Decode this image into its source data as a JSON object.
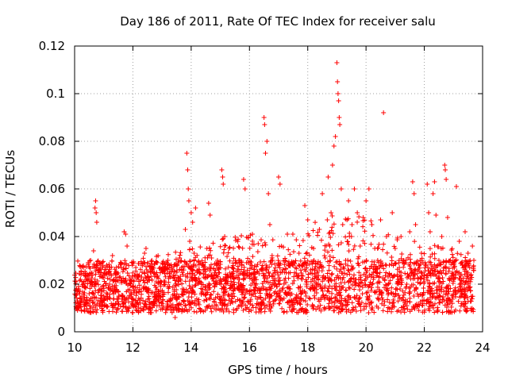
{
  "chart_data": {
    "type": "scatter",
    "title": "Day 186 of 2011, Rate Of TEC Index for receiver salu",
    "xlabel": "GPS time / hours",
    "ylabel": "ROTI / TECUs",
    "xlim": [
      10,
      24
    ],
    "ylim": [
      0,
      0.12
    ],
    "xticks": [
      10,
      12,
      14,
      16,
      18,
      20,
      22,
      24
    ],
    "yticks": [
      0,
      0.02,
      0.04,
      0.06,
      0.08,
      0.1,
      0.12
    ],
    "xtick_labels": [
      "10",
      "12",
      "14",
      "16",
      "18",
      "20",
      "22",
      "24"
    ],
    "ytick_labels": [
      "0",
      "0.02",
      "0.04",
      "0.06",
      "0.08",
      "0.1",
      "0.12"
    ],
    "grid": true,
    "marker": "+",
    "marker_color": "#ff0000",
    "series": [
      {
        "name": "ROTI",
        "points": [
          [
            10.05,
            0.021
          ],
          [
            10.1,
            0.009
          ],
          [
            10.15,
            0.017
          ],
          [
            10.2,
            0.022
          ],
          [
            10.25,
            0.013
          ],
          [
            10.3,
            0.027
          ],
          [
            10.35,
            0.019
          ],
          [
            10.4,
            0.012
          ],
          [
            10.45,
            0.024
          ],
          [
            10.5,
            0.016
          ],
          [
            10.55,
            0.03
          ],
          [
            10.6,
            0.021
          ],
          [
            10.65,
            0.034
          ],
          [
            10.7,
            0.052
          ],
          [
            10.72,
            0.055
          ],
          [
            10.74,
            0.05
          ],
          [
            10.76,
            0.046
          ],
          [
            10.8,
            0.026
          ],
          [
            10.9,
            0.018
          ],
          [
            10.95,
            0.023
          ],
          [
            11.0,
            0.015
          ],
          [
            11.1,
            0.028
          ],
          [
            11.2,
            0.02
          ],
          [
            11.3,
            0.032
          ],
          [
            11.4,
            0.024
          ],
          [
            11.5,
            0.017
          ],
          [
            11.6,
            0.029
          ],
          [
            11.7,
            0.042
          ],
          [
            11.75,
            0.041
          ],
          [
            11.8,
            0.036
          ],
          [
            11.9,
            0.022
          ],
          [
            12.0,
            0.019
          ],
          [
            12.1,
            0.027
          ],
          [
            12.2,
            0.014
          ],
          [
            12.3,
            0.023
          ],
          [
            12.4,
            0.033
          ],
          [
            12.45,
            0.035
          ],
          [
            12.5,
            0.018
          ],
          [
            12.6,
            0.025
          ],
          [
            12.7,
            0.012
          ],
          [
            12.8,
            0.021
          ],
          [
            12.9,
            0.017
          ],
          [
            13.0,
            0.026
          ],
          [
            13.1,
            0.02
          ],
          [
            13.2,
            0.03
          ],
          [
            13.3,
            0.014
          ],
          [
            13.4,
            0.009
          ],
          [
            13.45,
            0.006
          ],
          [
            13.5,
            0.022
          ],
          [
            13.6,
            0.031
          ],
          [
            13.7,
            0.018
          ],
          [
            13.8,
            0.043
          ],
          [
            13.85,
            0.075
          ],
          [
            13.88,
            0.068
          ],
          [
            13.9,
            0.06
          ],
          [
            13.92,
            0.055
          ],
          [
            13.95,
            0.038
          ],
          [
            14.0,
            0.05
          ],
          [
            14.05,
            0.046
          ],
          [
            14.1,
            0.033
          ],
          [
            14.15,
            0.052
          ],
          [
            14.2,
            0.025
          ],
          [
            14.3,
            0.021
          ],
          [
            14.4,
            0.028
          ],
          [
            14.5,
            0.019
          ],
          [
            14.6,
            0.054
          ],
          [
            14.65,
            0.049
          ],
          [
            14.7,
            0.031
          ],
          [
            14.8,
            0.024
          ],
          [
            14.9,
            0.03
          ],
          [
            15.0,
            0.022
          ],
          [
            15.05,
            0.068
          ],
          [
            15.08,
            0.065
          ],
          [
            15.1,
            0.062
          ],
          [
            15.15,
            0.04
          ],
          [
            15.2,
            0.017
          ],
          [
            15.3,
            0.035
          ],
          [
            15.4,
            0.027
          ],
          [
            15.5,
            0.018
          ],
          [
            15.6,
            0.038
          ],
          [
            15.7,
            0.02
          ],
          [
            15.8,
            0.064
          ],
          [
            15.85,
            0.06
          ],
          [
            15.9,
            0.029
          ],
          [
            16.0,
            0.016
          ],
          [
            16.1,
            0.041
          ],
          [
            16.2,
            0.023
          ],
          [
            16.3,
            0.037
          ],
          [
            16.4,
            0.026
          ],
          [
            16.5,
            0.09
          ],
          [
            16.52,
            0.087
          ],
          [
            16.55,
            0.075
          ],
          [
            16.6,
            0.08
          ],
          [
            16.65,
            0.058
          ],
          [
            16.7,
            0.045
          ],
          [
            16.8,
            0.03
          ],
          [
            16.9,
            0.02
          ],
          [
            17.0,
            0.065
          ],
          [
            17.05,
            0.062
          ],
          [
            17.1,
            0.036
          ],
          [
            17.2,
            0.025
          ],
          [
            17.3,
            0.041
          ],
          [
            17.4,
            0.018
          ],
          [
            17.5,
            0.028
          ],
          [
            17.6,
            0.014
          ],
          [
            17.7,
            0.033
          ],
          [
            17.8,
            0.022
          ],
          [
            17.9,
            0.053
          ],
          [
            18.0,
            0.047
          ],
          [
            18.1,
            0.026
          ],
          [
            18.2,
            0.035
          ],
          [
            18.3,
            0.02
          ],
          [
            18.4,
            0.043
          ],
          [
            18.5,
            0.058
          ],
          [
            18.6,
            0.031
          ],
          [
            18.7,
            0.065
          ],
          [
            18.75,
            0.01
          ],
          [
            18.8,
            0.05
          ],
          [
            18.85,
            0.07
          ],
          [
            18.9,
            0.078
          ],
          [
            18.95,
            0.082
          ],
          [
            19.0,
            0.113
          ],
          [
            19.02,
            0.105
          ],
          [
            19.04,
            0.1
          ],
          [
            19.06,
            0.097
          ],
          [
            19.08,
            0.09
          ],
          [
            19.1,
            0.087
          ],
          [
            19.15,
            0.06
          ],
          [
            19.2,
            0.045
          ],
          [
            19.3,
            0.03
          ],
          [
            19.4,
            0.055
          ],
          [
            19.5,
            0.04
          ],
          [
            19.6,
            0.06
          ],
          [
            19.7,
            0.05
          ],
          [
            19.8,
            0.036
          ],
          [
            19.9,
            0.048
          ],
          [
            20.0,
            0.055
          ],
          [
            20.1,
            0.06
          ],
          [
            20.2,
            0.045
          ],
          [
            20.3,
            0.035
          ],
          [
            20.4,
            0.03
          ],
          [
            20.5,
            0.047
          ],
          [
            20.6,
            0.092
          ],
          [
            20.7,
            0.04
          ],
          [
            20.8,
            0.028
          ],
          [
            20.9,
            0.05
          ],
          [
            21.0,
            0.035
          ],
          [
            21.1,
            0.022
          ],
          [
            21.2,
            0.04
          ],
          [
            21.3,
            0.03
          ],
          [
            21.4,
            0.02
          ],
          [
            21.5,
            0.042
          ],
          [
            21.6,
            0.063
          ],
          [
            21.65,
            0.058
          ],
          [
            21.7,
            0.045
          ],
          [
            21.8,
            0.028
          ],
          [
            21.9,
            0.033
          ],
          [
            22.0,
            0.024
          ],
          [
            22.1,
            0.062
          ],
          [
            22.15,
            0.05
          ],
          [
            22.2,
            0.042
          ],
          [
            22.3,
            0.058
          ],
          [
            22.35,
            0.063
          ],
          [
            22.4,
            0.049
          ],
          [
            22.5,
            0.03
          ],
          [
            22.6,
            0.04
          ],
          [
            22.7,
            0.07
          ],
          [
            22.72,
            0.068
          ],
          [
            22.75,
            0.064
          ],
          [
            22.8,
            0.048
          ],
          [
            22.9,
            0.03
          ],
          [
            23.0,
            0.022
          ],
          [
            23.1,
            0.061
          ],
          [
            23.2,
            0.038
          ],
          [
            23.3,
            0.028
          ],
          [
            23.4,
            0.042
          ],
          [
            23.5,
            0.033
          ],
          [
            23.6,
            0.022
          ],
          [
            23.65,
            0.036
          ],
          [
            23.7,
            0.03
          ]
        ]
      }
    ],
    "dense_band": {
      "note": "dense cloud of ROTI values throughout the day",
      "x_range": [
        10.0,
        23.7
      ],
      "core_y": [
        0.008,
        0.03
      ],
      "upper_y_by_hour": [
        [
          10,
          0.028
        ],
        [
          12,
          0.03
        ],
        [
          14,
          0.035
        ],
        [
          15,
          0.04
        ],
        [
          16,
          0.042
        ],
        [
          17,
          0.038
        ],
        [
          18,
          0.045
        ],
        [
          19,
          0.05
        ],
        [
          20,
          0.048
        ],
        [
          21,
          0.04
        ],
        [
          22,
          0.038
        ],
        [
          23,
          0.035
        ],
        [
          23.7,
          0.03
        ]
      ]
    }
  }
}
